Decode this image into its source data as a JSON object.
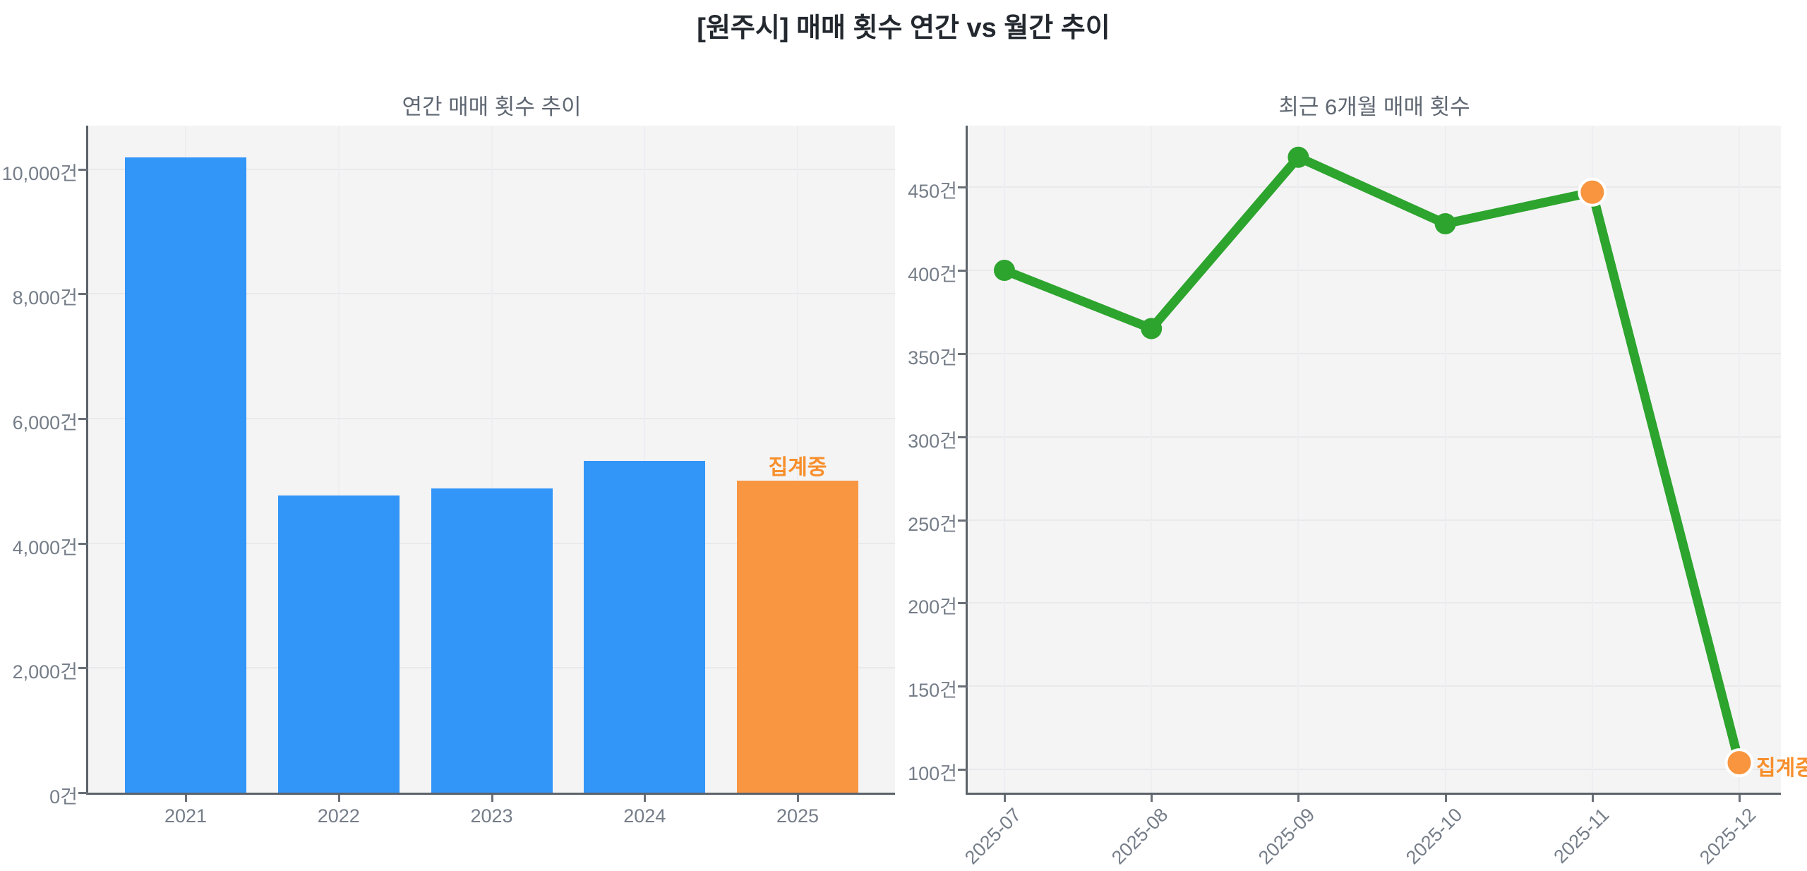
{
  "page": {
    "title": "[원주시] 매매 횟수 연간 vs 월간 추이"
  },
  "colors": {
    "bar_blue": "#3295f8",
    "bar_orange": "#f99642",
    "line_green": "#2da42d",
    "marker_green": "#2da42d",
    "marker_orange": "#f9953f",
    "annotation_orange": "#f78f2c",
    "plot_background": "#f4f4f5",
    "gridline": "#e9e9ec",
    "axis_spine": "#5b6269",
    "tick_text": "#757d88",
    "subplot_title_text": "#5f6772",
    "main_title_text": "#23282f"
  },
  "chart_data": [
    {
      "type": "bar",
      "title": "연간 매매 횟수 추이",
      "categories": [
        "2021",
        "2022",
        "2023",
        "2024",
        "2025"
      ],
      "values": [
        10190,
        4770,
        4880,
        5320,
        5010
      ],
      "bar_colors": [
        "#3295f8",
        "#3295f8",
        "#3295f8",
        "#3295f8",
        "#f99642"
      ],
      "unit": "건",
      "yticks": [
        0,
        2000,
        4000,
        6000,
        8000,
        10000
      ],
      "ytick_labels": [
        "0건",
        "2,000건",
        "4,000건",
        "6,000건",
        "8,000건",
        "10,000건"
      ],
      "ylim": [
        0,
        10700
      ],
      "grid": true,
      "annotation": {
        "text": "집계중",
        "target_category": "2025",
        "target_index": 4,
        "color": "#f78f2c"
      }
    },
    {
      "type": "line",
      "title": "최근 6개월 매매 횟수",
      "x": [
        "2025-07",
        "2025-08",
        "2025-09",
        "2025-10",
        "2025-11",
        "2025-12"
      ],
      "values": [
        400,
        365,
        468,
        428,
        447,
        104
      ],
      "unit": "건",
      "yticks": [
        100,
        150,
        200,
        250,
        300,
        350,
        400,
        450
      ],
      "ytick_labels": [
        "100건",
        "150건",
        "200건",
        "250건",
        "300건",
        "350건",
        "400건",
        "450건"
      ],
      "ylim": [
        86,
        487
      ],
      "grid": true,
      "line_color": "#2da42d",
      "marker_colors": [
        "#2da42d",
        "#2da42d",
        "#2da42d",
        "#2da42d",
        "#f9953f",
        "#f9953f"
      ],
      "highlight_indices": [
        4,
        5
      ],
      "annotation": {
        "text": "집계중",
        "target_x": "2025-12",
        "target_index": 5,
        "color": "#f78f2c"
      }
    }
  ]
}
